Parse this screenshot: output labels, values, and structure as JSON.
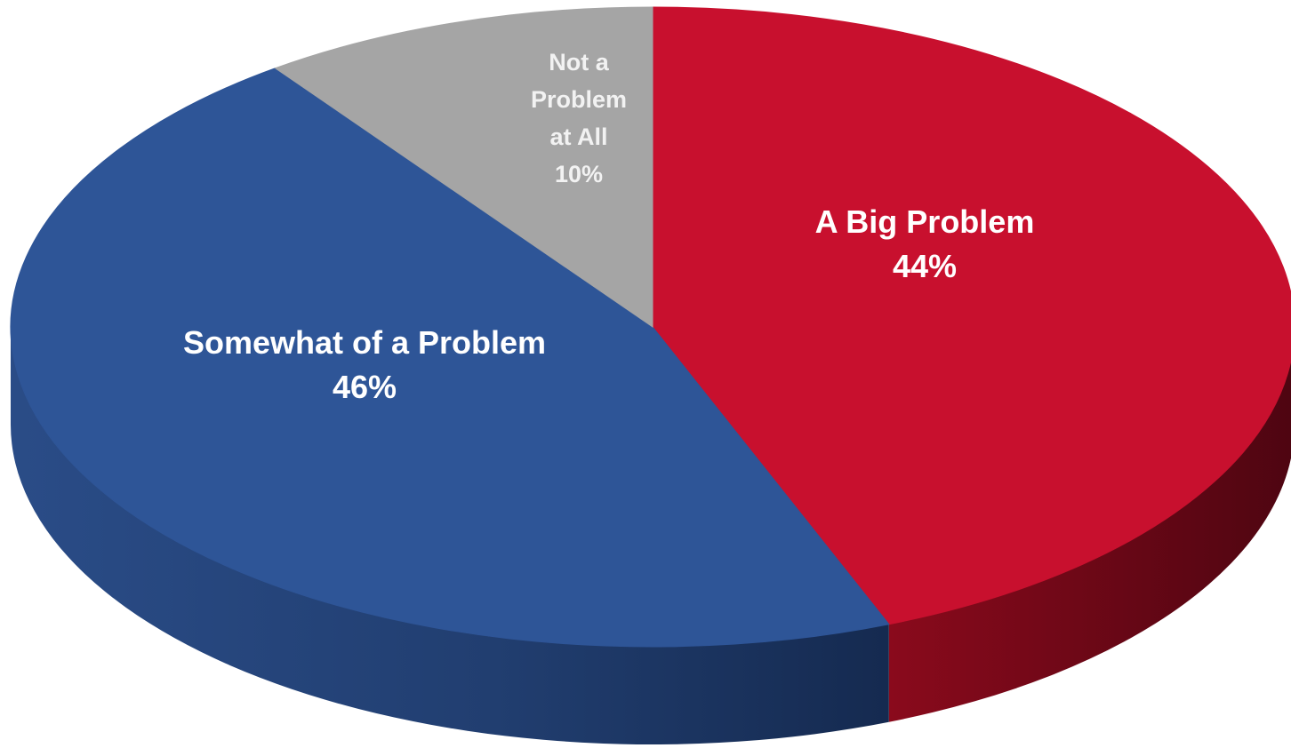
{
  "chart_data": {
    "type": "pie",
    "title": "",
    "style": "3d",
    "slices": [
      {
        "label": "A Big Problem",
        "value": 44,
        "value_label": "44%",
        "color": "#c8102e"
      },
      {
        "label": "Somewhat of a Problem",
        "value": 46,
        "value_label": "46%",
        "color": "#2e5597"
      },
      {
        "label": "Not a Problem at All",
        "value": 10,
        "value_label": "10%",
        "color": "#a5a5a5"
      }
    ],
    "label_lines": [
      [
        "A Big Problem",
        "44%"
      ],
      [
        "Somewhat of a Problem",
        "46%"
      ],
      [
        "Not a",
        "Problem",
        "at All",
        "10%"
      ]
    ],
    "side_colors": [
      "#8a0a1c",
      "#223f73",
      "#7a7a7a"
    ]
  }
}
